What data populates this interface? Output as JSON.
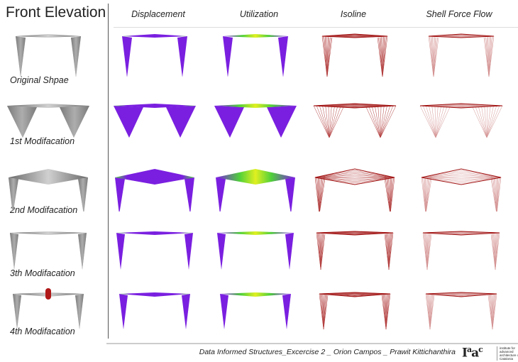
{
  "title": "Front Elevation",
  "columns": [
    "Displacement",
    "Utilization",
    "Isoline",
    "Shell Force Flow"
  ],
  "rows": [
    {
      "label": "Original Shpae"
    },
    {
      "label": "1st Modifacation"
    },
    {
      "label": "2nd Modifacation"
    },
    {
      "label": "3th Modifacation"
    },
    {
      "label": "4th Modifacation"
    }
  ],
  "footer": "Data Informed Structures_Excercise 2 _ Orion Campos _ Prawit Kittichanthira",
  "logo": {
    "text": "Iaac",
    "subtitle": "institute for advanced architecture of Catalonia"
  },
  "colors": {
    "gray": "#a0a0a0",
    "purple": "#7a1fe0",
    "green": "#4fd03a",
    "yellow": "#e0f020",
    "red": "#a01010"
  }
}
